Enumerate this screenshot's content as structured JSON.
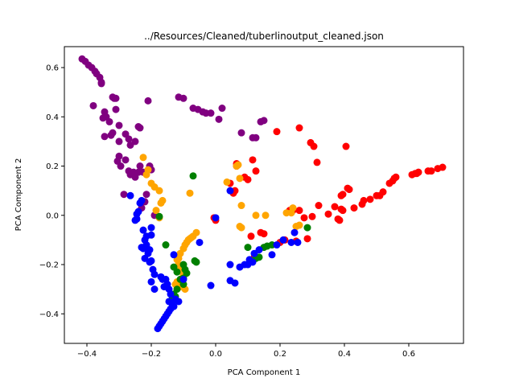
{
  "chart_data": {
    "type": "scatter",
    "title": "../Resources/Cleaned/tuberlinoutput_cleaned.json",
    "xlabel": "PCA Component 1",
    "ylabel": "PCA Component 2",
    "xlim": [
      -0.47,
      0.77
    ],
    "ylim": [
      -0.52,
      0.685
    ],
    "xticks": [
      -0.4,
      -0.2,
      0.0,
      0.2,
      0.4,
      0.6
    ],
    "xtick_labels": [
      "−0.4",
      "−0.2",
      "0.0",
      "0.2",
      "0.4",
      "0.6"
    ],
    "yticks": [
      -0.4,
      -0.2,
      0.0,
      0.2,
      0.4,
      0.6
    ],
    "ytick_labels": [
      "−0.4",
      "−0.2",
      "0.0",
      "0.2",
      "0.4",
      "0.6"
    ],
    "grid": false,
    "legend": "none",
    "series": [
      {
        "color": "#800080",
        "points": [
          [
            -0.415,
            0.635
          ],
          [
            -0.405,
            0.625
          ],
          [
            -0.395,
            0.61
          ],
          [
            -0.385,
            0.6
          ],
          [
            -0.375,
            0.585
          ],
          [
            -0.37,
            0.575
          ],
          [
            -0.36,
            0.56
          ],
          [
            -0.355,
            0.54
          ],
          [
            -0.355,
            0.535
          ],
          [
            -0.38,
            0.445
          ],
          [
            -0.345,
            0.42
          ],
          [
            -0.34,
            0.4
          ],
          [
            -0.33,
            0.38
          ],
          [
            -0.32,
            0.48
          ],
          [
            -0.315,
            0.475
          ],
          [
            -0.31,
            0.475
          ],
          [
            -0.31,
            0.43
          ],
          [
            -0.35,
            0.395
          ],
          [
            -0.3,
            0.365
          ],
          [
            -0.32,
            0.335
          ],
          [
            -0.345,
            0.32
          ],
          [
            -0.325,
            0.325
          ],
          [
            -0.3,
            0.3
          ],
          [
            -0.28,
            0.33
          ],
          [
            -0.27,
            0.31
          ],
          [
            -0.265,
            0.285
          ],
          [
            -0.25,
            0.3
          ],
          [
            -0.24,
            0.36
          ],
          [
            -0.235,
            0.355
          ],
          [
            -0.3,
            0.24
          ],
          [
            -0.305,
            0.22
          ],
          [
            -0.295,
            0.2
          ],
          [
            -0.28,
            0.225
          ],
          [
            -0.27,
            0.18
          ],
          [
            -0.255,
            0.175
          ],
          [
            -0.25,
            0.155
          ],
          [
            -0.24,
            0.175
          ],
          [
            -0.225,
            0.175
          ],
          [
            -0.205,
            0.2
          ],
          [
            -0.2,
            0.185
          ],
          [
            -0.21,
            0.465
          ],
          [
            -0.115,
            0.48
          ],
          [
            -0.1,
            0.475
          ],
          [
            -0.07,
            0.435
          ],
          [
            -0.055,
            0.43
          ],
          [
            -0.04,
            0.42
          ],
          [
            -0.03,
            0.415
          ],
          [
            -0.015,
            0.415
          ],
          [
            0.01,
            0.39
          ],
          [
            0.02,
            0.435
          ],
          [
            0.08,
            0.335
          ],
          [
            0.115,
            0.315
          ],
          [
            0.125,
            0.315
          ],
          [
            0.14,
            0.38
          ],
          [
            0.15,
            0.385
          ],
          [
            -0.215,
            0.085
          ],
          [
            -0.22,
            0.055
          ],
          [
            -0.23,
            0.03
          ],
          [
            -0.19,
            0.0
          ],
          [
            -0.235,
            0.2
          ],
          [
            -0.285,
            0.085
          ],
          [
            -0.265,
            0.165
          ]
        ]
      },
      {
        "color": "#ff0000",
        "points": [
          [
            0.19,
            0.34
          ],
          [
            0.26,
            0.355
          ],
          [
            0.295,
            0.295
          ],
          [
            0.305,
            0.28
          ],
          [
            0.315,
            0.215
          ],
          [
            0.405,
            0.28
          ],
          [
            0.115,
            0.225
          ],
          [
            0.065,
            0.21
          ],
          [
            0.065,
            0.2
          ],
          [
            0.09,
            0.155
          ],
          [
            0.1,
            0.145
          ],
          [
            0.125,
            0.18
          ],
          [
            0.045,
            0.13
          ],
          [
            0.06,
            0.1
          ],
          [
            0.055,
            0.09
          ],
          [
            -0.005,
            -0.01
          ],
          [
            0.0,
            -0.02
          ],
          [
            0.24,
            0.02
          ],
          [
            0.26,
            0.02
          ],
          [
            0.275,
            -0.01
          ],
          [
            0.3,
            -0.005
          ],
          [
            0.32,
            0.04
          ],
          [
            0.35,
            0.005
          ],
          [
            0.37,
            0.035
          ],
          [
            0.38,
            -0.015
          ],
          [
            0.385,
            -0.02
          ],
          [
            0.39,
            0.025
          ],
          [
            0.395,
            0.02
          ],
          [
            0.39,
            0.08
          ],
          [
            0.395,
            0.085
          ],
          [
            0.41,
            0.11
          ],
          [
            0.415,
            0.105
          ],
          [
            0.43,
            0.03
          ],
          [
            0.455,
            0.045
          ],
          [
            0.46,
            0.06
          ],
          [
            0.48,
            0.065
          ],
          [
            0.5,
            0.08
          ],
          [
            0.51,
            0.08
          ],
          [
            0.52,
            0.095
          ],
          [
            0.54,
            0.13
          ],
          [
            0.55,
            0.14
          ],
          [
            0.555,
            0.15
          ],
          [
            0.56,
            0.155
          ],
          [
            0.61,
            0.165
          ],
          [
            0.62,
            0.17
          ],
          [
            0.625,
            0.17
          ],
          [
            0.63,
            0.175
          ],
          [
            0.66,
            0.18
          ],
          [
            0.67,
            0.18
          ],
          [
            0.69,
            0.19
          ],
          [
            0.705,
            0.195
          ],
          [
            0.285,
            -0.095
          ],
          [
            0.25,
            -0.105
          ],
          [
            0.215,
            -0.1
          ],
          [
            0.2,
            -0.11
          ],
          [
            0.14,
            -0.07
          ],
          [
            0.11,
            -0.085
          ],
          [
            0.12,
            -0.17
          ],
          [
            0.15,
            -0.075
          ],
          [
            0.23,
            0.02
          ]
        ]
      },
      {
        "color": "#ffa500",
        "points": [
          [
            -0.225,
            0.235
          ],
          [
            -0.21,
            0.185
          ],
          [
            -0.215,
            0.165
          ],
          [
            -0.2,
            0.13
          ],
          [
            -0.19,
            0.115
          ],
          [
            -0.175,
            0.1
          ],
          [
            -0.165,
            0.06
          ],
          [
            -0.17,
            0.05
          ],
          [
            -0.08,
            0.09
          ],
          [
            -0.185,
            0.02
          ],
          [
            -0.175,
            -0.01
          ],
          [
            -0.09,
            -0.11
          ],
          [
            -0.085,
            -0.1
          ],
          [
            -0.08,
            -0.095
          ],
          [
            -0.075,
            -0.09
          ],
          [
            -0.07,
            -0.085
          ],
          [
            -0.06,
            -0.07
          ],
          [
            -0.095,
            -0.12
          ],
          [
            -0.1,
            -0.135
          ],
          [
            -0.11,
            -0.155
          ],
          [
            -0.115,
            -0.175
          ],
          [
            -0.12,
            -0.18
          ],
          [
            -0.115,
            -0.2
          ],
          [
            -0.11,
            -0.215
          ],
          [
            -0.105,
            -0.23
          ],
          [
            -0.1,
            -0.245
          ],
          [
            -0.12,
            -0.27
          ],
          [
            -0.125,
            -0.28
          ],
          [
            -0.11,
            -0.29
          ],
          [
            -0.095,
            -0.3
          ],
          [
            0.035,
            0.135
          ],
          [
            0.065,
            0.2
          ],
          [
            0.07,
            0.205
          ],
          [
            0.075,
            0.15
          ],
          [
            0.08,
            0.04
          ],
          [
            0.08,
            -0.05
          ],
          [
            0.125,
            0.0
          ],
          [
            0.155,
            0.0
          ],
          [
            0.22,
            0.01
          ],
          [
            0.235,
            0.01
          ],
          [
            0.24,
            0.03
          ],
          [
            0.25,
            -0.045
          ],
          [
            0.26,
            -0.04
          ],
          [
            0.075,
            -0.045
          ]
        ]
      },
      {
        "color": "#008000",
        "points": [
          [
            -0.07,
            0.16
          ],
          [
            -0.175,
            -0.005
          ],
          [
            -0.155,
            -0.12
          ],
          [
            -0.065,
            -0.185
          ],
          [
            -0.06,
            -0.19
          ],
          [
            -0.1,
            -0.2
          ],
          [
            -0.095,
            -0.22
          ],
          [
            -0.09,
            -0.235
          ],
          [
            -0.1,
            -0.255
          ],
          [
            -0.11,
            -0.26
          ],
          [
            -0.1,
            -0.28
          ],
          [
            -0.12,
            -0.3
          ],
          [
            -0.13,
            -0.32
          ],
          [
            -0.125,
            -0.33
          ],
          [
            -0.135,
            -0.34
          ],
          [
            -0.13,
            -0.21
          ],
          [
            -0.12,
            -0.23
          ],
          [
            0.1,
            -0.13
          ],
          [
            0.11,
            -0.185
          ],
          [
            0.125,
            -0.175
          ],
          [
            0.135,
            -0.17
          ],
          [
            0.15,
            -0.13
          ],
          [
            0.16,
            -0.125
          ],
          [
            0.175,
            -0.12
          ],
          [
            0.285,
            -0.05
          ]
        ]
      },
      {
        "color": "#0000ff",
        "points": [
          [
            -0.265,
            0.08
          ],
          [
            -0.23,
            0.06
          ],
          [
            -0.235,
            0.05
          ],
          [
            -0.24,
            0.015
          ],
          [
            -0.245,
            0.005
          ],
          [
            -0.245,
            -0.015
          ],
          [
            -0.25,
            -0.02
          ],
          [
            -0.225,
            -0.06
          ],
          [
            -0.215,
            -0.085
          ],
          [
            -0.22,
            -0.1
          ],
          [
            -0.215,
            -0.12
          ],
          [
            -0.205,
            -0.14
          ],
          [
            -0.21,
            -0.155
          ],
          [
            -0.2,
            -0.185
          ],
          [
            -0.205,
            -0.19
          ],
          [
            -0.195,
            -0.22
          ],
          [
            -0.19,
            -0.24
          ],
          [
            -0.2,
            -0.27
          ],
          [
            -0.19,
            -0.3
          ],
          [
            -0.225,
            -0.135
          ],
          [
            -0.22,
            -0.175
          ],
          [
            -0.23,
            -0.13
          ],
          [
            -0.17,
            -0.25
          ],
          [
            -0.155,
            -0.26
          ],
          [
            -0.15,
            -0.28
          ],
          [
            -0.16,
            -0.29
          ],
          [
            -0.145,
            -0.3
          ],
          [
            -0.14,
            -0.32
          ],
          [
            -0.145,
            -0.35
          ],
          [
            -0.135,
            -0.36
          ],
          [
            -0.14,
            -0.38
          ],
          [
            -0.145,
            -0.39
          ],
          [
            -0.15,
            -0.4
          ],
          [
            -0.155,
            -0.41
          ],
          [
            -0.16,
            -0.42
          ],
          [
            -0.165,
            -0.43
          ],
          [
            -0.17,
            -0.44
          ],
          [
            -0.175,
            -0.45
          ],
          [
            -0.18,
            -0.46
          ],
          [
            -0.125,
            -0.34
          ],
          [
            -0.115,
            -0.35
          ],
          [
            -0.13,
            -0.37
          ],
          [
            -0.165,
            -0.26
          ],
          [
            -0.1,
            -0.26
          ],
          [
            -0.05,
            -0.11
          ],
          [
            -0.13,
            -0.16
          ],
          [
            0.0,
            -0.01
          ],
          [
            0.045,
            -0.2
          ],
          [
            0.045,
            -0.265
          ],
          [
            0.06,
            -0.275
          ],
          [
            0.075,
            -0.21
          ],
          [
            0.09,
            -0.2
          ],
          [
            0.1,
            -0.2
          ],
          [
            0.105,
            -0.18
          ],
          [
            0.115,
            -0.19
          ],
          [
            0.12,
            -0.155
          ],
          [
            0.135,
            -0.14
          ],
          [
            0.175,
            -0.16
          ],
          [
            0.19,
            -0.12
          ],
          [
            0.21,
            -0.1
          ],
          [
            0.235,
            -0.11
          ],
          [
            0.245,
            -0.07
          ],
          [
            0.255,
            -0.11
          ],
          [
            -0.015,
            -0.285
          ],
          [
            0.045,
            0.1
          ],
          [
            -0.2,
            -0.08
          ],
          [
            -0.2,
            -0.05
          ]
        ]
      }
    ]
  }
}
